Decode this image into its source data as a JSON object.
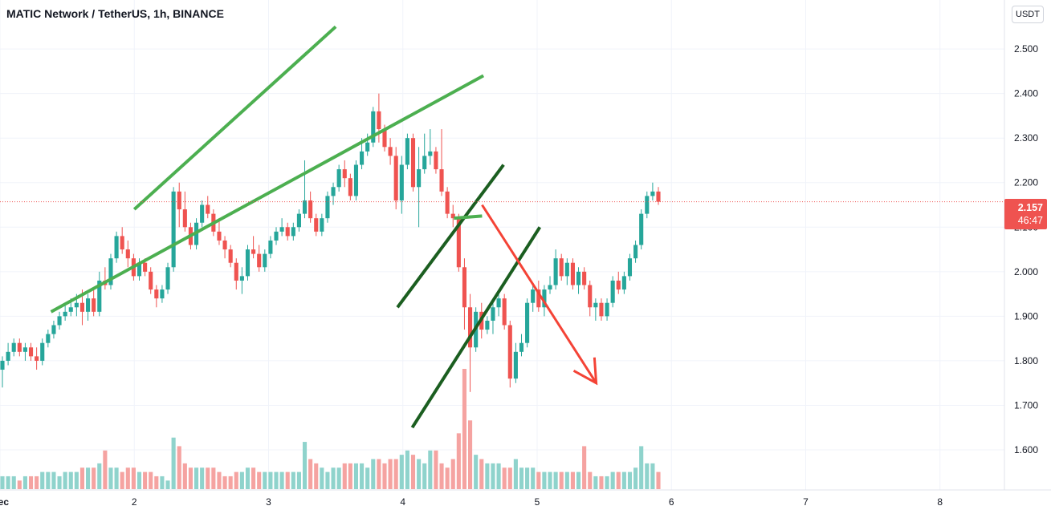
{
  "title": "MATIC Network / TetherUS, 1h, BINANCE",
  "currency": "USDT",
  "price_badge": {
    "price": "2.157",
    "countdown": "46:47",
    "color": "#ef5350"
  },
  "colors": {
    "up": "#26a69a",
    "down": "#ef5350",
    "vol_up": "#8fd3cc",
    "vol_down": "#f5a3a1",
    "channel_light": "#4caf50",
    "channel_dark": "#1b5e20",
    "arrow": "#f44336"
  },
  "chart_data": {
    "type": "candlestick",
    "title": "MATIC Network / TetherUS, 1h, BINANCE",
    "y_axis": {
      "ticks": [
        "2.500",
        "2.400",
        "2.300",
        "2.200",
        "2.100",
        "2.000",
        "1.900",
        "1.800",
        "1.700",
        "1.600"
      ],
      "range": [
        1.51,
        2.61
      ],
      "position": "right"
    },
    "x_axis": {
      "ticks": [
        "Dec",
        "2",
        "3",
        "4",
        "5",
        "6",
        "7",
        "8"
      ],
      "range": [
        0,
        7.48
      ]
    },
    "last_price": 2.157,
    "candles": [
      {
        "o": 1.78,
        "h": 1.81,
        "l": 1.74,
        "c": 1.8
      },
      {
        "o": 1.8,
        "h": 1.84,
        "l": 1.79,
        "c": 1.82
      },
      {
        "o": 1.82,
        "h": 1.85,
        "l": 1.81,
        "c": 1.84
      },
      {
        "o": 1.84,
        "h": 1.85,
        "l": 1.81,
        "c": 1.82
      },
      {
        "o": 1.82,
        "h": 1.84,
        "l": 1.8,
        "c": 1.83
      },
      {
        "o": 1.83,
        "h": 1.84,
        "l": 1.8,
        "c": 1.81
      },
      {
        "o": 1.81,
        "h": 1.83,
        "l": 1.78,
        "c": 1.8
      },
      {
        "o": 1.8,
        "h": 1.85,
        "l": 1.79,
        "c": 1.84
      },
      {
        "o": 1.84,
        "h": 1.87,
        "l": 1.83,
        "c": 1.86
      },
      {
        "o": 1.86,
        "h": 1.89,
        "l": 1.85,
        "c": 1.88
      },
      {
        "o": 1.88,
        "h": 1.91,
        "l": 1.87,
        "c": 1.9
      },
      {
        "o": 1.9,
        "h": 1.93,
        "l": 1.89,
        "c": 1.91
      },
      {
        "o": 1.91,
        "h": 1.94,
        "l": 1.9,
        "c": 1.92
      },
      {
        "o": 1.92,
        "h": 1.95,
        "l": 1.9,
        "c": 1.93
      },
      {
        "o": 1.93,
        "h": 1.96,
        "l": 1.88,
        "c": 1.91
      },
      {
        "o": 1.91,
        "h": 1.95,
        "l": 1.89,
        "c": 1.94
      },
      {
        "o": 1.94,
        "h": 1.96,
        "l": 1.9,
        "c": 1.91
      },
      {
        "o": 1.91,
        "h": 2.0,
        "l": 1.9,
        "c": 1.98
      },
      {
        "o": 1.98,
        "h": 2.01,
        "l": 1.96,
        "c": 1.97
      },
      {
        "o": 1.97,
        "h": 2.04,
        "l": 1.96,
        "c": 2.03
      },
      {
        "o": 2.03,
        "h": 2.09,
        "l": 2.02,
        "c": 2.08
      },
      {
        "o": 2.08,
        "h": 2.1,
        "l": 2.04,
        "c": 2.05
      },
      {
        "o": 2.05,
        "h": 2.07,
        "l": 2.01,
        "c": 2.03
      },
      {
        "o": 2.03,
        "h": 2.04,
        "l": 1.98,
        "c": 1.99
      },
      {
        "o": 1.99,
        "h": 2.03,
        "l": 1.98,
        "c": 2.02
      },
      {
        "o": 2.02,
        "h": 2.03,
        "l": 1.99,
        "c": 2.0
      },
      {
        "o": 2.0,
        "h": 2.01,
        "l": 1.95,
        "c": 1.96
      },
      {
        "o": 1.96,
        "h": 1.97,
        "l": 1.92,
        "c": 1.94
      },
      {
        "o": 1.94,
        "h": 1.97,
        "l": 1.93,
        "c": 1.96
      },
      {
        "o": 1.96,
        "h": 2.02,
        "l": 1.95,
        "c": 2.01
      },
      {
        "o": 2.01,
        "h": 2.19,
        "l": 2.0,
        "c": 2.18
      },
      {
        "o": 2.18,
        "h": 2.2,
        "l": 2.1,
        "c": 2.14
      },
      {
        "o": 2.14,
        "h": 2.18,
        "l": 2.09,
        "c": 2.1
      },
      {
        "o": 2.1,
        "h": 2.11,
        "l": 2.05,
        "c": 2.06
      },
      {
        "o": 2.06,
        "h": 2.12,
        "l": 2.05,
        "c": 2.11
      },
      {
        "o": 2.11,
        "h": 2.16,
        "l": 2.1,
        "c": 2.15
      },
      {
        "o": 2.15,
        "h": 2.17,
        "l": 2.12,
        "c": 2.13
      },
      {
        "o": 2.13,
        "h": 2.14,
        "l": 2.08,
        "c": 2.09
      },
      {
        "o": 2.09,
        "h": 2.12,
        "l": 2.06,
        "c": 2.07
      },
      {
        "o": 2.07,
        "h": 2.08,
        "l": 2.03,
        "c": 2.05
      },
      {
        "o": 2.05,
        "h": 2.06,
        "l": 2.01,
        "c": 2.02
      },
      {
        "o": 2.02,
        "h": 2.03,
        "l": 1.96,
        "c": 1.98
      },
      {
        "o": 1.98,
        "h": 2.01,
        "l": 1.95,
        "c": 1.99
      },
      {
        "o": 1.99,
        "h": 2.06,
        "l": 1.98,
        "c": 2.05
      },
      {
        "o": 2.05,
        "h": 2.08,
        "l": 2.03,
        "c": 2.04
      },
      {
        "o": 2.04,
        "h": 2.06,
        "l": 2.0,
        "c": 2.01
      },
      {
        "o": 2.01,
        "h": 2.05,
        "l": 2.0,
        "c": 2.04
      },
      {
        "o": 2.04,
        "h": 2.08,
        "l": 2.03,
        "c": 2.07
      },
      {
        "o": 2.07,
        "h": 2.1,
        "l": 2.06,
        "c": 2.09
      },
      {
        "o": 2.09,
        "h": 2.12,
        "l": 2.08,
        "c": 2.1
      },
      {
        "o": 2.1,
        "h": 2.11,
        "l": 2.07,
        "c": 2.08
      },
      {
        "o": 2.08,
        "h": 2.11,
        "l": 2.07,
        "c": 2.1
      },
      {
        "o": 2.1,
        "h": 2.14,
        "l": 2.09,
        "c": 2.13
      },
      {
        "o": 2.13,
        "h": 2.25,
        "l": 2.12,
        "c": 2.16
      },
      {
        "o": 2.16,
        "h": 2.18,
        "l": 2.11,
        "c": 2.12
      },
      {
        "o": 2.12,
        "h": 2.13,
        "l": 2.08,
        "c": 2.09
      },
      {
        "o": 2.09,
        "h": 2.13,
        "l": 2.08,
        "c": 2.12
      },
      {
        "o": 2.12,
        "h": 2.18,
        "l": 2.11,
        "c": 2.17
      },
      {
        "o": 2.17,
        "h": 2.2,
        "l": 2.15,
        "c": 2.19
      },
      {
        "o": 2.19,
        "h": 2.24,
        "l": 2.18,
        "c": 2.23
      },
      {
        "o": 2.23,
        "h": 2.25,
        "l": 2.19,
        "c": 2.21
      },
      {
        "o": 2.21,
        "h": 2.22,
        "l": 2.16,
        "c": 2.17
      },
      {
        "o": 2.17,
        "h": 2.25,
        "l": 2.16,
        "c": 2.24
      },
      {
        "o": 2.24,
        "h": 2.3,
        "l": 2.23,
        "c": 2.27
      },
      {
        "o": 2.27,
        "h": 2.31,
        "l": 2.26,
        "c": 2.29
      },
      {
        "o": 2.29,
        "h": 2.37,
        "l": 2.28,
        "c": 2.36
      },
      {
        "o": 2.36,
        "h": 2.4,
        "l": 2.29,
        "c": 2.32
      },
      {
        "o": 2.32,
        "h": 2.33,
        "l": 2.27,
        "c": 2.28
      },
      {
        "o": 2.28,
        "h": 2.3,
        "l": 2.24,
        "c": 2.26
      },
      {
        "o": 2.26,
        "h": 2.28,
        "l": 2.14,
        "c": 2.16
      },
      {
        "o": 2.16,
        "h": 2.26,
        "l": 2.13,
        "c": 2.24
      },
      {
        "o": 2.24,
        "h": 2.31,
        "l": 2.23,
        "c": 2.3
      },
      {
        "o": 2.3,
        "h": 2.31,
        "l": 2.18,
        "c": 2.19
      },
      {
        "o": 2.19,
        "h": 2.28,
        "l": 2.1,
        "c": 2.23
      },
      {
        "o": 2.23,
        "h": 2.31,
        "l": 2.22,
        "c": 2.26
      },
      {
        "o": 2.26,
        "h": 2.32,
        "l": 2.24,
        "c": 2.27
      },
      {
        "o": 2.27,
        "h": 2.28,
        "l": 2.22,
        "c": 2.23
      },
      {
        "o": 2.23,
        "h": 2.32,
        "l": 2.17,
        "c": 2.18
      },
      {
        "o": 2.18,
        "h": 2.19,
        "l": 2.12,
        "c": 2.13
      },
      {
        "o": 2.13,
        "h": 2.15,
        "l": 2.1,
        "c": 2.12
      },
      {
        "o": 2.12,
        "h": 2.13,
        "l": 2.0,
        "c": 2.01
      },
      {
        "o": 2.01,
        "h": 2.03,
        "l": 1.87,
        "c": 1.92
      },
      {
        "o": 1.92,
        "h": 1.95,
        "l": 1.73,
        "c": 1.83
      },
      {
        "o": 1.83,
        "h": 1.92,
        "l": 1.82,
        "c": 1.91
      },
      {
        "o": 1.91,
        "h": 1.93,
        "l": 1.85,
        "c": 1.87
      },
      {
        "o": 1.87,
        "h": 1.9,
        "l": 1.86,
        "c": 1.89
      },
      {
        "o": 1.89,
        "h": 1.94,
        "l": 1.86,
        "c": 1.92
      },
      {
        "o": 1.92,
        "h": 1.96,
        "l": 1.9,
        "c": 1.94
      },
      {
        "o": 1.94,
        "h": 1.95,
        "l": 1.87,
        "c": 1.88
      },
      {
        "o": 1.88,
        "h": 1.89,
        "l": 1.74,
        "c": 1.76
      },
      {
        "o": 1.76,
        "h": 1.84,
        "l": 1.75,
        "c": 1.82
      },
      {
        "o": 1.82,
        "h": 1.86,
        "l": 1.81,
        "c": 1.84
      },
      {
        "o": 1.84,
        "h": 1.94,
        "l": 1.83,
        "c": 1.93
      },
      {
        "o": 1.93,
        "h": 1.97,
        "l": 1.91,
        "c": 1.96
      },
      {
        "o": 1.96,
        "h": 1.98,
        "l": 1.91,
        "c": 1.92
      },
      {
        "o": 1.92,
        "h": 1.97,
        "l": 1.9,
        "c": 1.96
      },
      {
        "o": 1.96,
        "h": 1.99,
        "l": 1.95,
        "c": 1.97
      },
      {
        "o": 1.97,
        "h": 2.05,
        "l": 1.96,
        "c": 2.03
      },
      {
        "o": 2.03,
        "h": 2.04,
        "l": 1.98,
        "c": 1.99
      },
      {
        "o": 1.99,
        "h": 2.03,
        "l": 1.97,
        "c": 2.02
      },
      {
        "o": 2.02,
        "h": 2.03,
        "l": 1.96,
        "c": 1.97
      },
      {
        "o": 1.97,
        "h": 2.01,
        "l": 1.95,
        "c": 2.0
      },
      {
        "o": 2.0,
        "h": 2.01,
        "l": 1.96,
        "c": 1.97
      },
      {
        "o": 1.97,
        "h": 1.98,
        "l": 1.9,
        "c": 1.92
      },
      {
        "o": 1.92,
        "h": 1.94,
        "l": 1.89,
        "c": 1.93
      },
      {
        "o": 1.93,
        "h": 1.94,
        "l": 1.89,
        "c": 1.9
      },
      {
        "o": 1.9,
        "h": 1.94,
        "l": 1.89,
        "c": 1.93
      },
      {
        "o": 1.93,
        "h": 1.99,
        "l": 1.92,
        "c": 1.98
      },
      {
        "o": 1.98,
        "h": 2.0,
        "l": 1.95,
        "c": 1.96
      },
      {
        "o": 1.96,
        "h": 2.0,
        "l": 1.95,
        "c": 1.99
      },
      {
        "o": 1.99,
        "h": 2.04,
        "l": 1.98,
        "c": 2.03
      },
      {
        "o": 2.03,
        "h": 2.07,
        "l": 2.02,
        "c": 2.06
      },
      {
        "o": 2.06,
        "h": 2.14,
        "l": 2.05,
        "c": 2.13
      },
      {
        "o": 2.13,
        "h": 2.18,
        "l": 2.12,
        "c": 2.17
      },
      {
        "o": 2.17,
        "h": 2.2,
        "l": 2.16,
        "c": 2.18
      },
      {
        "o": 2.18,
        "h": 2.19,
        "l": 2.15,
        "c": 2.157
      }
    ],
    "volume": [
      3,
      3,
      3,
      2,
      3,
      3,
      3,
      4,
      4,
      4,
      3,
      4,
      4,
      4,
      5,
      5,
      5,
      6,
      9,
      5,
      5,
      4,
      5,
      5,
      4,
      4,
      4,
      3,
      3,
      2,
      12,
      10,
      6,
      5,
      5,
      5,
      5,
      5,
      4,
      3,
      3,
      4,
      4,
      5,
      5,
      4,
      4,
      4,
      4,
      4,
      4,
      4,
      4,
      11,
      7,
      6,
      5,
      4,
      5,
      5,
      6,
      6,
      6,
      6,
      5,
      7,
      7,
      6,
      7,
      7,
      8,
      9,
      8,
      7,
      6,
      9,
      9,
      6,
      5,
      7,
      13,
      28,
      16,
      8,
      7,
      6,
      6,
      6,
      5,
      5,
      7,
      5,
      5,
      5,
      4,
      4,
      4,
      4,
      4,
      4,
      4,
      4,
      10,
      4,
      3,
      3,
      3,
      4,
      4,
      4,
      4,
      5,
      10,
      6,
      6,
      4
    ],
    "drawings": [
      {
        "kind": "line",
        "style": "light-green",
        "p1": [
          1.0,
          2.14
        ],
        "p2": [
          2.5,
          2.55
        ]
      },
      {
        "kind": "line",
        "style": "light-green",
        "p1": [
          0.38,
          1.91
        ],
        "p2": [
          3.6,
          2.44
        ]
      },
      {
        "kind": "line",
        "style": "dark-green",
        "p1": [
          2.96,
          1.92
        ],
        "p2": [
          3.75,
          2.24
        ]
      },
      {
        "kind": "line",
        "style": "dark-green",
        "p1": [
          3.07,
          1.65
        ],
        "p2": [
          4.02,
          2.1
        ]
      },
      {
        "kind": "line",
        "style": "light-green",
        "p1": [
          3.38,
          2.12
        ],
        "p2": [
          3.59,
          2.125
        ]
      },
      {
        "kind": "arrow",
        "style": "red",
        "p1": [
          3.59,
          2.15
        ],
        "p2": [
          4.44,
          1.75
        ]
      }
    ]
  }
}
